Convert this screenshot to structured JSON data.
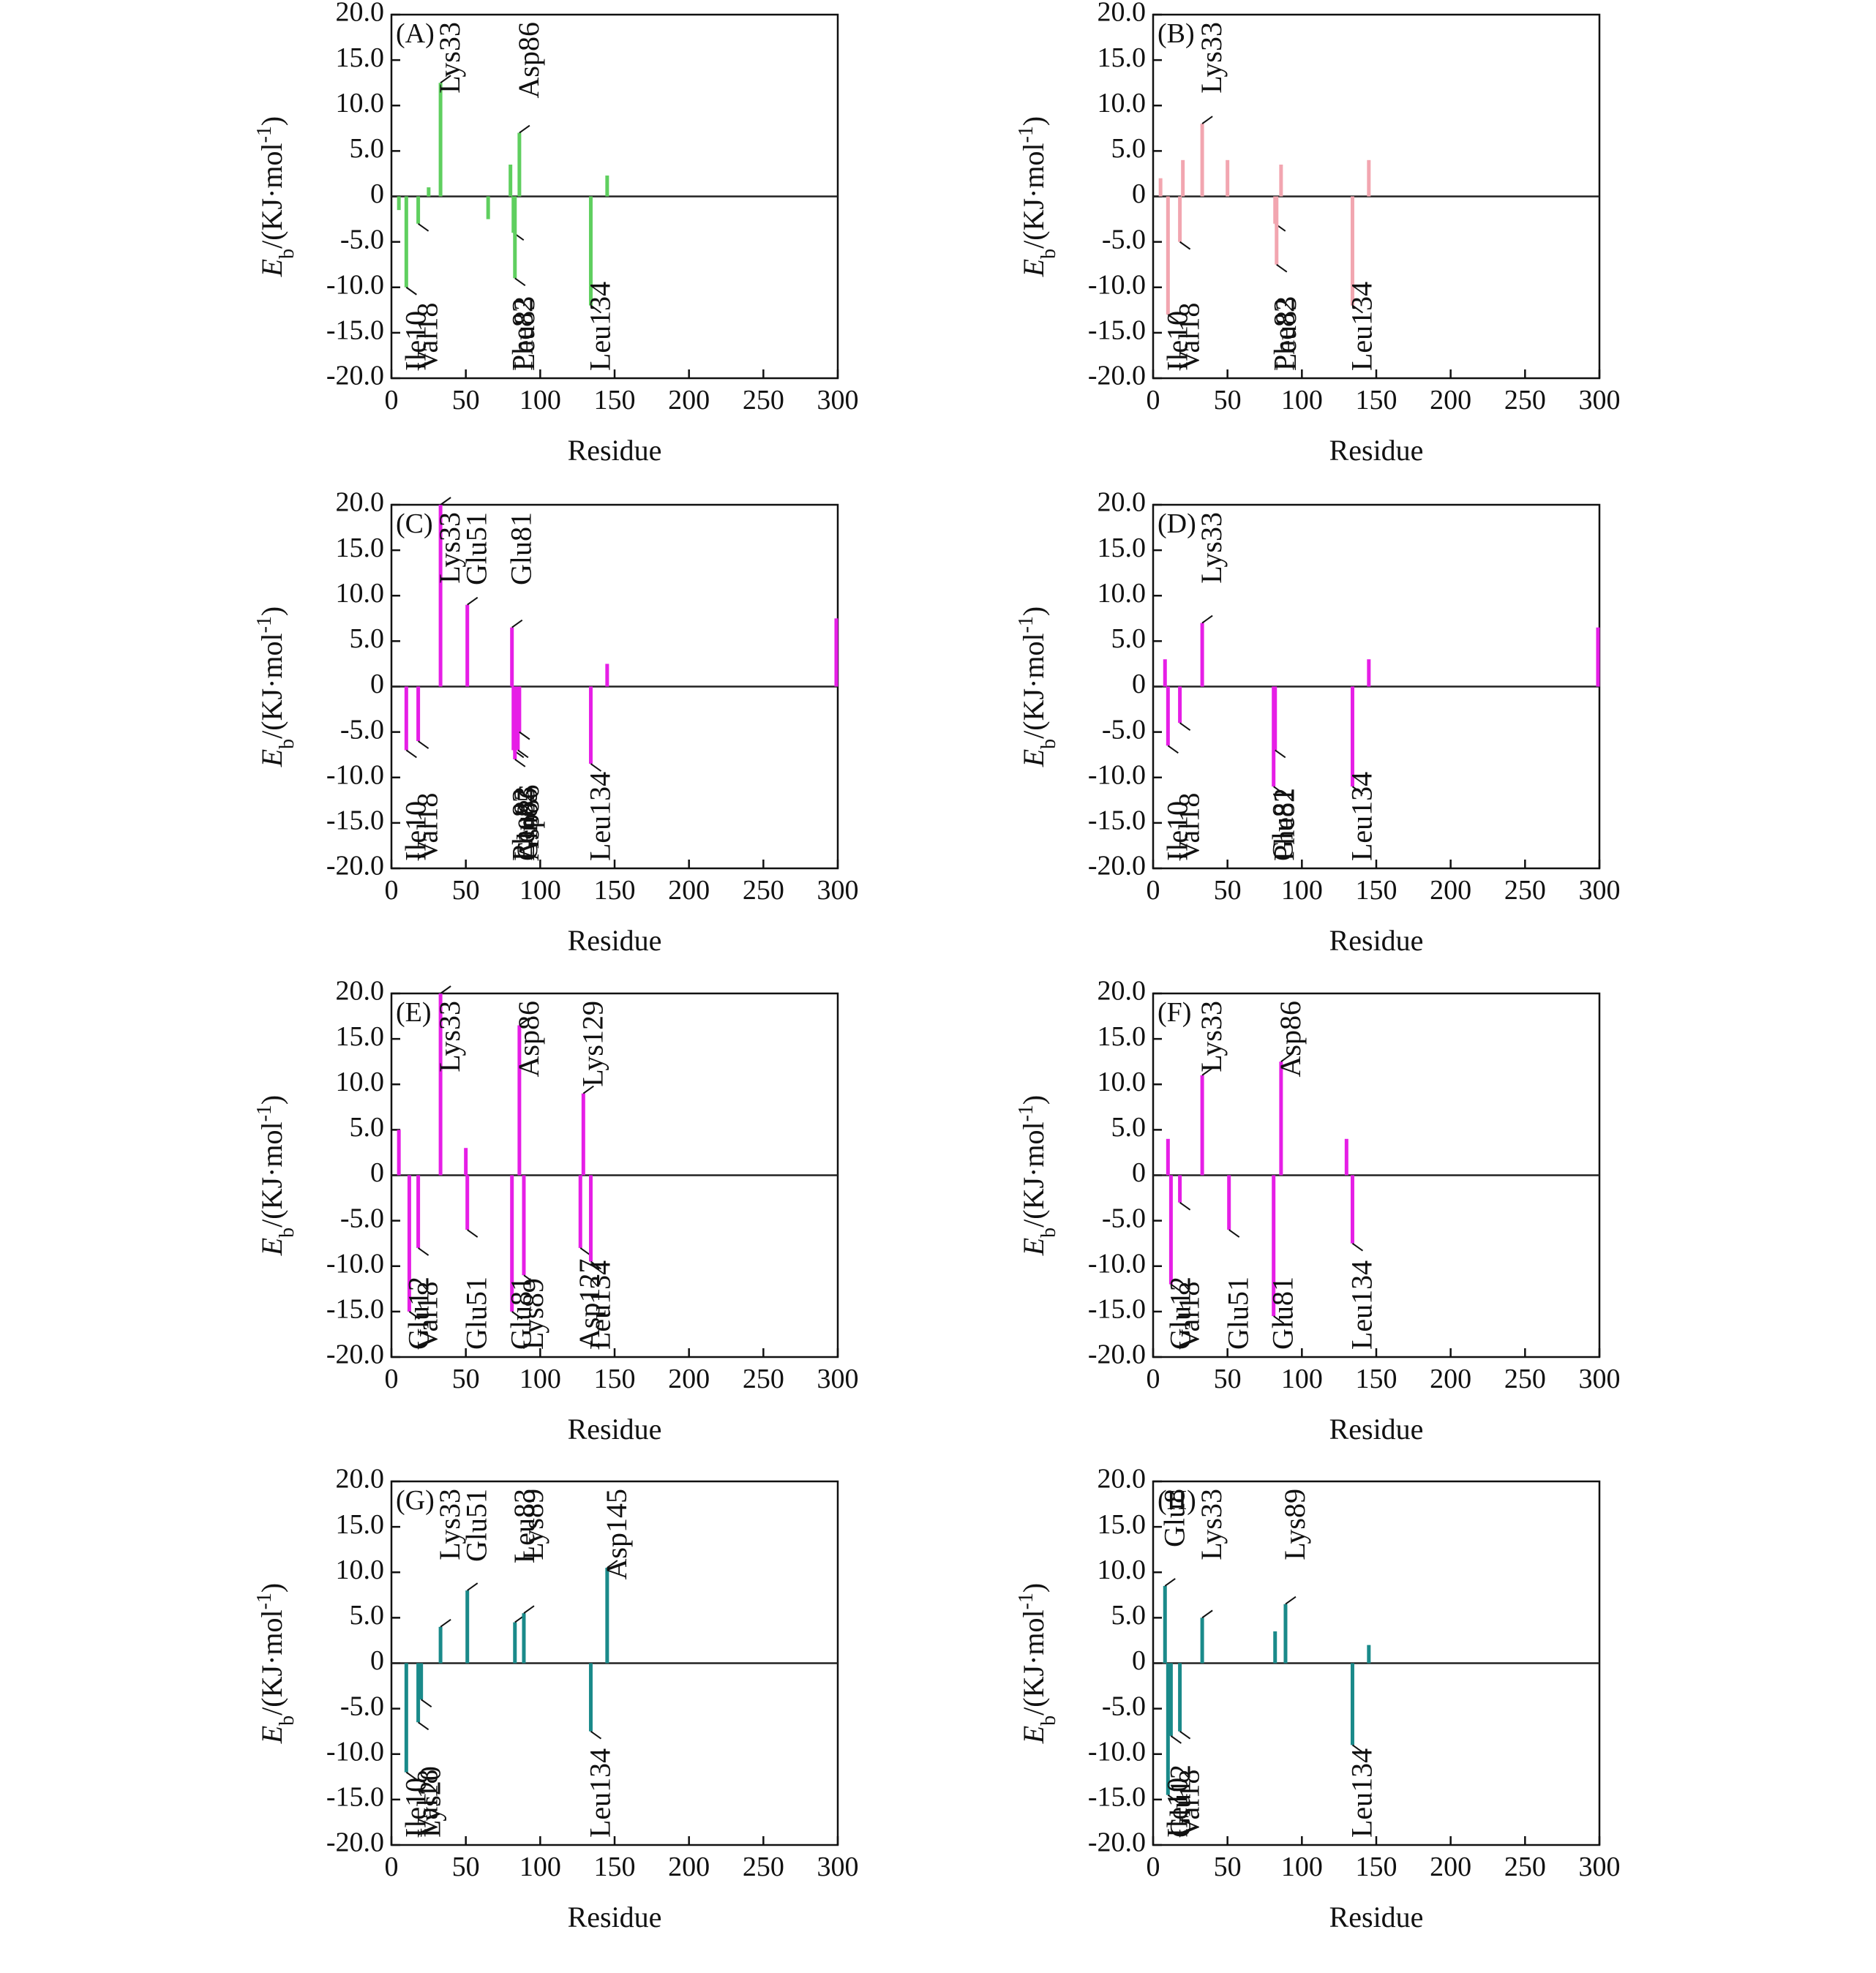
{
  "chart_data": [
    {
      "type": "bar",
      "title": "(A)",
      "x_label": "Residue",
      "y_label": [
        "E",
        "b",
        "/(KJ·mol",
        "-1",
        ")"
      ],
      "color": "#5fcf5f",
      "xlim": [
        0,
        300
      ],
      "ylim": [
        -20,
        20
      ],
      "xticks": [
        0,
        50,
        100,
        150,
        200,
        250,
        300
      ],
      "yticks": [
        {
          "value": -20,
          "label": "-20.0"
        },
        {
          "value": -15,
          "label": "-15.0"
        },
        {
          "value": -10,
          "label": "-10.0"
        },
        {
          "value": -5,
          "label": "-5.0"
        },
        0,
        {
          "value": 5,
          "label": "5.0"
        },
        {
          "value": 10,
          "label": "10.0"
        },
        {
          "value": 15,
          "label": "15.0"
        },
        {
          "value": 20,
          "label": "20.0"
        }
      ],
      "x": [
        5,
        10,
        18,
        25,
        33,
        65,
        80,
        82,
        83,
        86,
        134,
        145
      ],
      "values": [
        -1.5,
        -10,
        -3,
        1,
        12.5,
        -2.5,
        3.5,
        -4,
        -9,
        7,
        -12,
        2.3
      ],
      "residue_labels": [
        null,
        "Ile10",
        "Val18",
        null,
        "Lys33",
        null,
        null,
        "Phe82",
        "Leu83",
        "Asp86",
        "Leu134",
        null
      ]
    },
    {
      "type": "bar",
      "title": "(B)",
      "x_label": "Residue",
      "y_label": [
        "E",
        "b",
        "/(KJ·mol",
        "-1",
        ")"
      ],
      "color": "#f2a6b0",
      "xlim": [
        0,
        300
      ],
      "ylim": [
        -20,
        20
      ],
      "xticks": [
        0,
        50,
        100,
        150,
        200,
        250,
        300
      ],
      "yticks": [
        {
          "value": -20,
          "label": "-20.0"
        },
        {
          "value": -15,
          "label": "-15.0"
        },
        {
          "value": -10,
          "label": "-10.0"
        },
        {
          "value": -5,
          "label": "-5.0"
        },
        0,
        {
          "value": 5,
          "label": "5.0"
        },
        {
          "value": 10,
          "label": "10.0"
        },
        {
          "value": 15,
          "label": "15.0"
        },
        {
          "value": 20,
          "label": "20.0"
        }
      ],
      "x": [
        5,
        10,
        18,
        20,
        33,
        50,
        82,
        83,
        86,
        134,
        145
      ],
      "values": [
        2,
        -13,
        -5,
        4,
        8,
        4,
        -3,
        -7.5,
        3.5,
        -12,
        4
      ],
      "residue_labels": [
        null,
        "Ile10",
        "Val18",
        null,
        "Lys33",
        null,
        "Phe82",
        "Leu83",
        null,
        "Leu134",
        null
      ]
    },
    {
      "type": "bar",
      "title": "(C)",
      "x_label": "Residue",
      "y_label": [
        "E",
        "b",
        "/(KJ·mol",
        "-1",
        ")"
      ],
      "color": "#e61ee6",
      "xlim": [
        0,
        300
      ],
      "ylim": [
        -20,
        20
      ],
      "xticks": [
        0,
        50,
        100,
        150,
        200,
        250,
        300
      ],
      "yticks": [
        {
          "value": -20,
          "label": "-20.0"
        },
        {
          "value": -15,
          "label": "-15.0"
        },
        {
          "value": -10,
          "label": "-10.0"
        },
        {
          "value": -5,
          "label": "-5.0"
        },
        0,
        {
          "value": 5,
          "label": "5.0"
        },
        {
          "value": 10,
          "label": "10.0"
        },
        {
          "value": 15,
          "label": "15.0"
        },
        {
          "value": 20,
          "label": "20.0"
        }
      ],
      "x": [
        10,
        18,
        33,
        51,
        81,
        82,
        83,
        85,
        86,
        134,
        145,
        299
      ],
      "values": [
        -7,
        -6,
        20,
        9,
        6.5,
        -7,
        -8,
        -7,
        -5,
        -8.5,
        2.5,
        7.5
      ],
      "residue_labels": [
        "Ile10",
        "Val18",
        "Lys33",
        "Glu51",
        "Glu81",
        "Phe82",
        "Leu83",
        "Gln85",
        "Asp86",
        "Leu134",
        null,
        null
      ]
    },
    {
      "type": "bar",
      "title": "(D)",
      "x_label": "Residue",
      "y_label": [
        "E",
        "b",
        "/(KJ·mol",
        "-1",
        ")"
      ],
      "color": "#e61ee6",
      "xlim": [
        0,
        300
      ],
      "ylim": [
        -20,
        20
      ],
      "xticks": [
        0,
        50,
        100,
        150,
        200,
        250,
        300
      ],
      "yticks": [
        {
          "value": -20,
          "label": "-20.0"
        },
        {
          "value": -15,
          "label": "-15.0"
        },
        {
          "value": -10,
          "label": "-10.0"
        },
        {
          "value": -5,
          "label": "-5.0"
        },
        0,
        {
          "value": 5,
          "label": "5.0"
        },
        {
          "value": 10,
          "label": "10.0"
        },
        {
          "value": 15,
          "label": "15.0"
        },
        {
          "value": 20,
          "label": "20.0"
        }
      ],
      "x": [
        8,
        10,
        18,
        33,
        81,
        82,
        134,
        145,
        299
      ],
      "values": [
        3,
        -6.5,
        -4,
        7,
        -11,
        -7,
        -11,
        3,
        6.5
      ],
      "residue_labels": [
        null,
        "Ile10",
        "Val18",
        "Lys33",
        "Glu81",
        "Phe82",
        "Leu134",
        null,
        null
      ]
    },
    {
      "type": "bar",
      "title": "(E)",
      "x_label": "Residue",
      "y_label": [
        "E",
        "b",
        "/(KJ·mol",
        "-1",
        ")"
      ],
      "color": "#e61ee6",
      "xlim": [
        0,
        300
      ],
      "ylim": [
        -20,
        20
      ],
      "xticks": [
        0,
        50,
        100,
        150,
        200,
        250,
        300
      ],
      "yticks": [
        {
          "value": -20,
          "label": "-20.0"
        },
        {
          "value": -15,
          "label": "-15.0"
        },
        {
          "value": -10,
          "label": "-10.0"
        },
        {
          "value": -5,
          "label": "-5.0"
        },
        0,
        {
          "value": 5,
          "label": "5.0"
        },
        {
          "value": 10,
          "label": "10.0"
        },
        {
          "value": 15,
          "label": "15.0"
        },
        {
          "value": 20,
          "label": "20.0"
        }
      ],
      "x": [
        5,
        12,
        18,
        33,
        50,
        51,
        81,
        86,
        89,
        127,
        129,
        134
      ],
      "values": [
        5,
        -15,
        -8,
        20,
        3,
        -6,
        -15,
        16.5,
        -11,
        -8,
        9,
        -9.5
      ],
      "residue_labels": [
        null,
        "Glu12",
        "Val18",
        "Lys33",
        null,
        "Glu51",
        "Glu81",
        "Asp86",
        "Lys89",
        "Asp127",
        "Lys129",
        "Leu134"
      ]
    },
    {
      "type": "bar",
      "title": "(F)",
      "x_label": "Residue",
      "y_label": [
        "E",
        "b",
        "/(KJ·mol",
        "-1",
        ")"
      ],
      "color": "#e61ee6",
      "xlim": [
        0,
        300
      ],
      "ylim": [
        -20,
        20
      ],
      "xticks": [
        0,
        50,
        100,
        150,
        200,
        250,
        300
      ],
      "yticks": [
        {
          "value": -20,
          "label": "-20.0"
        },
        {
          "value": -15,
          "label": "-15.0"
        },
        {
          "value": -10,
          "label": "-10.0"
        },
        {
          "value": -5,
          "label": "-5.0"
        },
        0,
        {
          "value": 5,
          "label": "5.0"
        },
        {
          "value": 10,
          "label": "10.0"
        },
        {
          "value": 15,
          "label": "15.0"
        },
        {
          "value": 20,
          "label": "20.0"
        }
      ],
      "x": [
        10,
        12,
        18,
        33,
        51,
        81,
        86,
        130,
        134
      ],
      "values": [
        4,
        -12,
        -3,
        11,
        -6,
        -15.5,
        12.5,
        4,
        -7.5
      ],
      "residue_labels": [
        null,
        "Glu12",
        "Val18",
        "Lys33",
        "Glu51",
        "Glu81",
        "Asp86",
        null,
        "Leu134"
      ]
    },
    {
      "type": "bar",
      "title": "(G)",
      "x_label": "Residue",
      "y_label": [
        "E",
        "b",
        "/(KJ·mol",
        "-1",
        ")"
      ],
      "color": "#1a8a8a",
      "xlim": [
        0,
        300
      ],
      "ylim": [
        -20,
        20
      ],
      "xticks": [
        0,
        50,
        100,
        150,
        200,
        250,
        300
      ],
      "yticks": [
        {
          "value": -20,
          "label": "-20.0"
        },
        {
          "value": -15,
          "label": "-15.0"
        },
        {
          "value": -10,
          "label": "-10.0"
        },
        {
          "value": -5,
          "label": "-5.0"
        },
        0,
        {
          "value": 5,
          "label": "5.0"
        },
        {
          "value": 10,
          "label": "10.0"
        },
        {
          "value": 15,
          "label": "15.0"
        },
        {
          "value": 20,
          "label": "20.0"
        }
      ],
      "x": [
        10,
        18,
        20,
        33,
        51,
        83,
        89,
        134,
        145
      ],
      "values": [
        -12,
        -6.5,
        -4,
        4,
        8,
        4.5,
        5.5,
        -7.5,
        10.5
      ],
      "residue_labels": [
        "Ile10",
        "Val18",
        "Lys20",
        "Lys33",
        "Glu51",
        "Leu83",
        "Lys89",
        "Leu134",
        "Asp145"
      ]
    },
    {
      "type": "bar",
      "title": "(H)",
      "x_label": "Residue",
      "y_label": [
        "E",
        "b",
        "/(KJ·mol",
        "-1",
        ")"
      ],
      "color": "#1a8a8a",
      "xlim": [
        0,
        300
      ],
      "ylim": [
        -20,
        20
      ],
      "xticks": [
        0,
        50,
        100,
        150,
        200,
        250,
        300
      ],
      "yticks": [
        {
          "value": -20,
          "label": "-20.0"
        },
        {
          "value": -15,
          "label": "-15.0"
        },
        {
          "value": -10,
          "label": "-10.0"
        },
        {
          "value": -5,
          "label": "-5.0"
        },
        0,
        {
          "value": 5,
          "label": "5.0"
        },
        {
          "value": 10,
          "label": "10.0"
        },
        {
          "value": 15,
          "label": "15.0"
        },
        {
          "value": 20,
          "label": "20.0"
        }
      ],
      "x": [
        8,
        10,
        12,
        18,
        33,
        82,
        89,
        134,
        145
      ],
      "values": [
        8.5,
        -14.5,
        -8,
        -7.5,
        5,
        3.5,
        6.5,
        -9,
        2
      ],
      "residue_labels": [
        "Glu8",
        "Ile10",
        "Glu12",
        "Val18",
        "Lys33",
        null,
        "Lys89",
        "Leu134",
        null
      ]
    }
  ]
}
